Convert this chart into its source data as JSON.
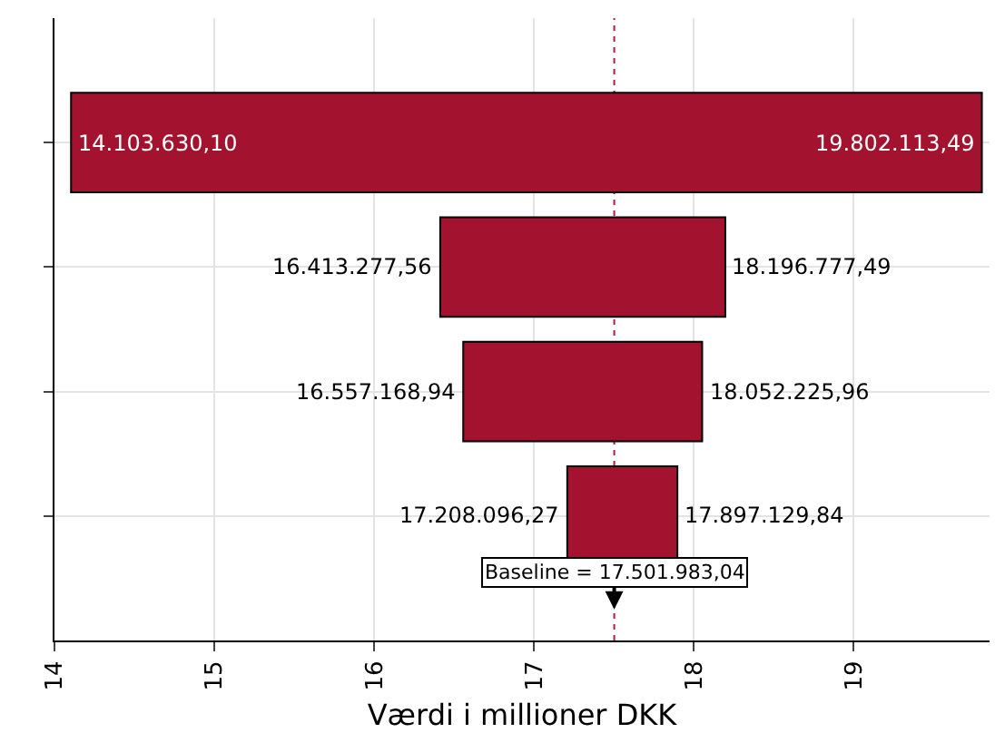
{
  "chart_data": {
    "type": "bar",
    "orientation": "horizontal",
    "xlabel": "Værdi i millioner DKK",
    "categories": [
      null,
      null,
      null,
      null
    ],
    "base": [
      14.1036301,
      16.41327756,
      16.55716894,
      17.20809627
    ],
    "values": [
      5.69848339,
      1.78349993,
      1.49505702,
      0.68903357
    ],
    "color": "#a3122f",
    "xlim": [
      14,
      19.85
    ],
    "xticks": [
      14,
      15,
      16,
      17,
      18,
      19
    ],
    "grid": true,
    "tick_labels": "x",
    "ref_lines": [
      {
        "axis": "x",
        "value": 17.50198304,
        "label": "Baseline = 17.501.983,04",
        "color": "#c0143c",
        "line_style": "dotted"
      }
    ],
    "annotations": [
      {
        "text": "14.103.630,10",
        "x": 14.1036301
      },
      {
        "text": "19.802.113,49",
        "x": 19.80211349
      },
      {
        "text": "16.413.277,56",
        "x": 16.41327756
      },
      {
        "text": "18.196.777,49",
        "x": 18.19677749
      },
      {
        "text": "16.557.168,94",
        "x": 16.55716894
      },
      {
        "text": "18.052.225,96",
        "x": 18.05222596
      },
      {
        "text": "17.208.096,27",
        "x": 17.20809627
      },
      {
        "text": "17.897.129,84",
        "x": 17.89712984
      }
    ]
  }
}
